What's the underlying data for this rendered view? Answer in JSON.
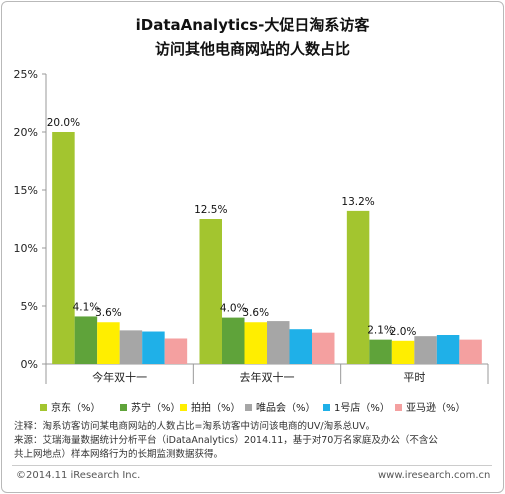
{
  "title_line1": "iDataAnalytics-大促日淘系访客",
  "title_line2": "访问其他电商网站的人数占比",
  "chart_data": {
    "type": "bar",
    "categories": [
      "今年双十一",
      "去年双十一",
      "平时"
    ],
    "ylim": [
      0,
      25
    ],
    "yticks": [
      "0%",
      "5%",
      "10%",
      "15%",
      "20%",
      "25%"
    ],
    "series": [
      {
        "name": "京东（%）",
        "color": "#a3c52f",
        "values": [
          20.0,
          12.5,
          13.2
        ],
        "labels": [
          "20.0%",
          "12.5%",
          "13.2%"
        ]
      },
      {
        "name": "苏宁（%）",
        "color": "#5fa33a",
        "values": [
          4.1,
          4.0,
          2.1
        ],
        "labels": [
          "4.1%",
          "4.0%",
          "2.1%"
        ]
      },
      {
        "name": "拍拍（%）",
        "color": "#ffee00",
        "values": [
          3.6,
          3.6,
          2.0
        ],
        "labels": [
          "3.6%",
          "3.6%",
          "2.0%"
        ]
      },
      {
        "name": "唯品会（%）",
        "color": "#a6a6a6",
        "values": [
          2.9,
          3.7,
          2.4
        ],
        "labels": [
          "",
          "",
          ""
        ]
      },
      {
        "name": "1号店（%）",
        "color": "#1fb0e8",
        "values": [
          2.8,
          3.0,
          2.5
        ],
        "labels": [
          "",
          "",
          ""
        ]
      },
      {
        "name": "亚马逊（%）",
        "color": "#f4a0a0",
        "values": [
          2.2,
          2.7,
          2.1
        ],
        "labels": [
          "",
          "",
          ""
        ]
      }
    ]
  },
  "note_line1": "注释：淘系访客访问某电商网站的人数占比=淘系访客中访问该电商的UV/淘系总UV。",
  "note_line2": "来源：艾瑞海量数据统计分析平台（iDataAnalytics）2014.11，基于对70万名家庭及办公（不含公",
  "note_line3": "共上网地点）样本网络行为的长期监测数据获得。",
  "footer_copyright": "©2014.11 iResearch Inc.",
  "footer_url": "www.iresearch.com.cn"
}
